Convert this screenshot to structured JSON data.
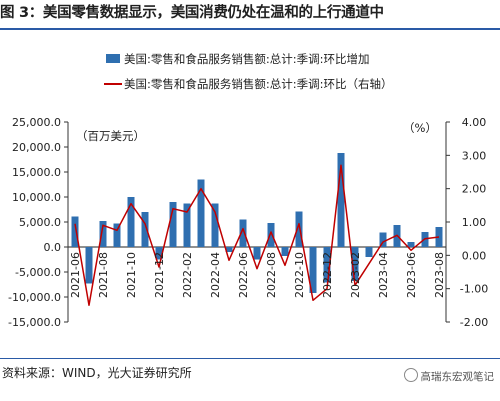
{
  "title": "图 3：美国零售数据显示，美国消费仍处在温和的上行通道中",
  "source": "资料来源：WIND，光大证券研究所",
  "watermark": "高瑞东宏观笔记",
  "colors": {
    "bar": "#2f6fb0",
    "line": "#c00000",
    "rule": "#2a5aa6"
  },
  "chart_data": {
    "type": "bar+line",
    "legend": {
      "position": "top-center",
      "bar_label": "美国:零售和食品服务销售额:总计:季调:环比增加",
      "line_label": "美国:零售和食品服务销售额:总计:季调:环比（右轴）"
    },
    "left_unit": "（百万美元）",
    "right_unit": "（%）",
    "left_ylim": [
      -15000,
      25000
    ],
    "right_ylim": [
      -2,
      4
    ],
    "left_ticks": [
      "25,000.0",
      "20,000.0",
      "15,000.0",
      "10,000.0",
      "5,000.0",
      "0.0",
      "-5,000.0",
      "-10,000.0",
      "-15,000.0"
    ],
    "right_ticks": [
      "4.00",
      "3.00",
      "2.00",
      "1.00",
      "0.00",
      "-1.00",
      "-2.00"
    ],
    "x_ticks": [
      "2021-06",
      "2021-08",
      "2021-10",
      "2021-12",
      "2022-02",
      "2022-04",
      "2022-06",
      "2022-08",
      "2022-10",
      "2022-12",
      "2023-02",
      "2023-04",
      "2023-06",
      "2023-08"
    ],
    "categories": [
      "2021-06",
      "2021-07",
      "2021-08",
      "2021-09",
      "2021-10",
      "2021-11",
      "2021-12",
      "2022-01",
      "2022-02",
      "2022-03",
      "2022-04",
      "2022-05",
      "2022-06",
      "2022-07",
      "2022-08",
      "2022-09",
      "2022-10",
      "2022-11",
      "2022-12",
      "2023-01",
      "2023-02",
      "2023-03",
      "2023-04",
      "2023-05",
      "2023-06",
      "2023-07",
      "2023-08"
    ],
    "series": [
      {
        "name": "美国:零售和食品服务销售额:总计:季调:环比增加",
        "axis": "left",
        "values": [
          6100,
          -7300,
          5200,
          4700,
          10000,
          7000,
          -2500,
          9000,
          8700,
          13500,
          8700,
          -1000,
          5500,
          -2500,
          4800,
          -1800,
          7100,
          -9200,
          -7100,
          18800,
          -6800,
          -2000,
          2900,
          4400,
          1000,
          3000,
          4000
        ]
      },
      {
        "name": "美国:零售和食品服务销售额:总计:季调:环比（右轴）",
        "axis": "right",
        "values": [
          0.95,
          -1.5,
          0.9,
          0.75,
          1.55,
          0.95,
          -0.35,
          1.4,
          1.3,
          2.0,
          1.3,
          -0.15,
          0.8,
          -0.4,
          0.7,
          -0.3,
          0.95,
          -1.35,
          -1.0,
          2.7,
          -0.9,
          -0.25,
          0.4,
          0.6,
          0.15,
          0.5,
          0.55
        ]
      }
    ]
  }
}
